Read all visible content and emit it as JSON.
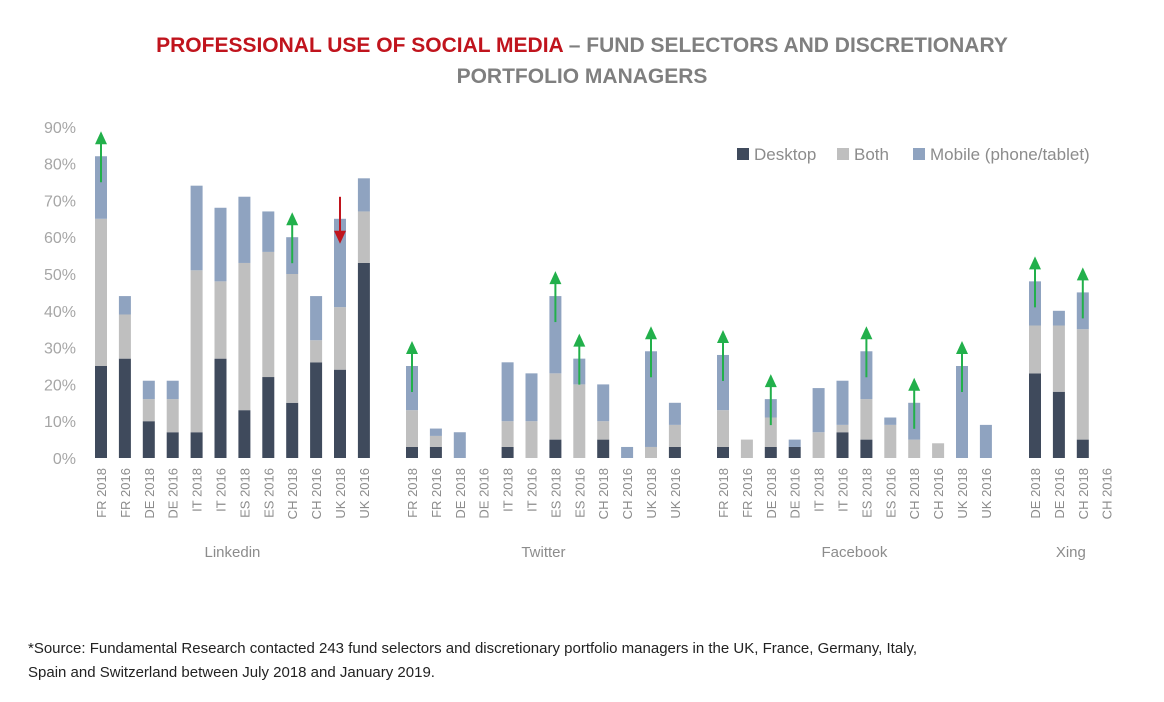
{
  "header": {
    "title_red": "PROFESSIONAL USE OF SOCIAL MEDIA",
    "title_rest": " – FUND SELECTORS AND DISCRETIONARY",
    "title_line2": "PORTFOLIO MANAGERS"
  },
  "footnote": {
    "line1": "*Source: Fundamental Research contacted 243 fund selectors and discretionary portfolio managers in the UK, France, Germany, Italy,",
    "line2": "Spain and Switzerland between July 2018 and January 2019."
  },
  "chart_data": {
    "type": "bar",
    "stacked": true,
    "ylim": [
      0,
      90
    ],
    "yticks": [
      0,
      10,
      20,
      30,
      40,
      50,
      60,
      70,
      80,
      90
    ],
    "ytick_labels": [
      "0%",
      "10%",
      "20%",
      "30%",
      "40%",
      "50%",
      "60%",
      "70%",
      "80%",
      "90%"
    ],
    "legend": {
      "position": "top-right"
    },
    "colors": {
      "Desktop": "#3f4a5c",
      "Both": "#bfbfbf",
      "Mobile (phone/tablet)": "#8fa3c0",
      "up_arrow": "#22b04b",
      "down_arrow": "#c0141d"
    },
    "series_names": [
      "Desktop",
      "Both",
      "Mobile (phone/tablet)"
    ],
    "groups": [
      {
        "name": "Linkedin",
        "categories": [
          "FR 2018",
          "FR 2016",
          "DE 2018",
          "DE 2016",
          "IT 2018",
          "IT 2016",
          "ES 2018",
          "ES 2016",
          "CH 2018",
          "CH 2016",
          "UK 2018",
          "UK 2016"
        ],
        "desktop": [
          25,
          27,
          10,
          7,
          7,
          27,
          13,
          22,
          15,
          26,
          24,
          53
        ],
        "both": [
          40,
          12,
          6,
          9,
          44,
          21,
          40,
          34,
          35,
          6,
          17,
          14
        ],
        "mobile": [
          17,
          5,
          5,
          5,
          23,
          20,
          18,
          11,
          10,
          12,
          24,
          9
        ],
        "arrows": [
          {
            "category": "FR 2018",
            "direction": "up"
          },
          {
            "category": "CH 2018",
            "direction": "up"
          },
          {
            "category": "UK 2018",
            "direction": "down"
          }
        ]
      },
      {
        "name": "Twitter",
        "categories": [
          "FR 2018",
          "FR 2016",
          "DE 2018",
          "DE 2016",
          "IT 2018",
          "IT 2016",
          "ES 2018",
          "ES 2016",
          "CH 2018",
          "CH 2016",
          "UK 2018",
          "UK 2016"
        ],
        "desktop": [
          3,
          3,
          0,
          0,
          3,
          0,
          5,
          0,
          5,
          0,
          0,
          3
        ],
        "both": [
          10,
          3,
          0,
          0,
          7,
          10,
          18,
          20,
          5,
          0,
          3,
          6
        ],
        "mobile": [
          12,
          2,
          7,
          0,
          16,
          13,
          21,
          7,
          10,
          3,
          26,
          6
        ],
        "arrows": [
          {
            "category": "FR 2018",
            "direction": "up"
          },
          {
            "category": "ES 2018",
            "direction": "up"
          },
          {
            "category": "ES 2016",
            "direction": "up"
          },
          {
            "category": "UK 2018",
            "direction": "up"
          }
        ]
      },
      {
        "name": "Facebook",
        "categories": [
          "FR 2018",
          "FR 2016",
          "DE 2018",
          "DE 2016",
          "IT 2018",
          "IT 2016",
          "ES 2018",
          "ES 2016",
          "CH 2018",
          "CH 2016",
          "UK 2018",
          "UK 2016"
        ],
        "desktop": [
          3,
          0,
          3,
          3,
          0,
          7,
          5,
          0,
          0,
          0,
          0,
          0
        ],
        "both": [
          10,
          5,
          8,
          0,
          7,
          2,
          11,
          9,
          5,
          4,
          0,
          0
        ],
        "mobile": [
          15,
          0,
          5,
          2,
          12,
          12,
          13,
          2,
          10,
          0,
          25,
          9
        ],
        "arrows": [
          {
            "category": "FR 2018",
            "direction": "up"
          },
          {
            "category": "DE 2018",
            "direction": "up"
          },
          {
            "category": "ES 2018",
            "direction": "up"
          },
          {
            "category": "CH 2018",
            "direction": "up"
          },
          {
            "category": "UK 2018",
            "direction": "up"
          }
        ]
      },
      {
        "name": "Xing",
        "categories": [
          "DE 2018",
          "DE 2016",
          "CH 2018",
          "CH 2016"
        ],
        "desktop": [
          23,
          18,
          5,
          0
        ],
        "both": [
          13,
          18,
          30,
          0
        ],
        "mobile": [
          12,
          4,
          10,
          0
        ],
        "arrows": [
          {
            "category": "DE 2018",
            "direction": "up"
          },
          {
            "category": "CH 2018",
            "direction": "up"
          }
        ]
      }
    ]
  }
}
